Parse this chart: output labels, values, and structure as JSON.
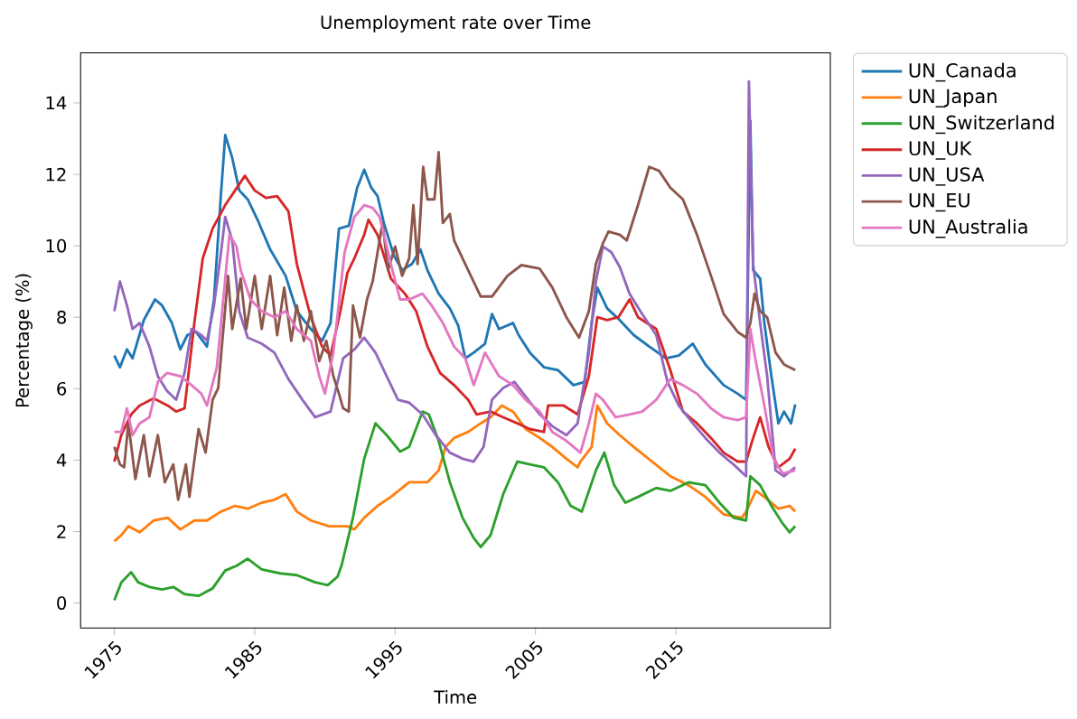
{
  "chart_data": {
    "type": "line",
    "title": "Unemployment rate over Time",
    "xlabel": "Time",
    "ylabel": "Percentage (%)",
    "xlim": [
      1972.6,
      2026.0
    ],
    "xticks": [
      1975,
      1985,
      1995,
      2005,
      2015
    ],
    "ylim": [
      -0.7,
      15.4
    ],
    "yticks": [
      0,
      2,
      4,
      6,
      8,
      10,
      12,
      14
    ],
    "legend": "top right",
    "line_style": "solid",
    "series": [
      {
        "name": "UN_Canada",
        "color": "#1f77b4",
        "x": [
          1975.0,
          1975.4,
          1975.9,
          1976.3,
          1977.1,
          1977.9,
          1978.4,
          1979.1,
          1979.7,
          1980.2,
          1980.8,
          1981.6,
          1982.1,
          1982.6,
          1982.9,
          1983.4,
          1983.9,
          1984.5,
          1985.2,
          1986.1,
          1987.2,
          1988.0,
          1989.0,
          1989.8,
          1990.4,
          1991.0,
          1991.7,
          1992.3,
          1992.8,
          1993.3,
          1993.75,
          1994.2,
          1994.9,
          1995.5,
          1996.2,
          1996.8,
          1997.3,
          1998.1,
          1998.9,
          1999.5,
          2000.0,
          2000.6,
          2001.4,
          2001.9,
          2002.4,
          2003.4,
          2003.8,
          2004.6,
          2005.6,
          2006.6,
          2007.7,
          2008.5,
          2009.0,
          2009.4,
          2010.1,
          2011.0,
          2012.0,
          2013.1,
          2014.3,
          2015.2,
          2016.2,
          2017.1,
          2018.4,
          2019.4,
          2020.0,
          2020.3,
          2020.5,
          2021.0,
          2021.3,
          2021.8,
          2022.3,
          2022.7,
          2023.2,
          2023.5
        ],
        "values": [
          6.93,
          6.6,
          7.1,
          6.85,
          7.92,
          8.5,
          8.33,
          7.84,
          7.1,
          7.5,
          7.6,
          7.18,
          8.5,
          11.47,
          13.1,
          12.46,
          11.55,
          11.3,
          10.73,
          9.9,
          9.16,
          8.17,
          7.67,
          7.34,
          7.84,
          10.48,
          10.56,
          11.63,
          12.13,
          11.63,
          11.39,
          10.64,
          9.74,
          9.32,
          9.49,
          9.9,
          9.32,
          8.66,
          8.25,
          7.76,
          6.85,
          7.01,
          7.26,
          8.09,
          7.67,
          7.84,
          7.5,
          7.01,
          6.6,
          6.52,
          6.1,
          6.19,
          7.84,
          8.83,
          8.25,
          7.92,
          7.5,
          7.18,
          6.85,
          6.93,
          7.26,
          6.68,
          6.1,
          5.86,
          5.69,
          13.5,
          9.32,
          9.08,
          7.84,
          6.35,
          5.03,
          5.36,
          5.03,
          5.56
        ]
      },
      {
        "name": "UN_Japan",
        "color": "#ff7f0e",
        "x": [
          1975.0,
          1975.5,
          1976.0,
          1976.8,
          1977.8,
          1978.8,
          1979.7,
          1980.7,
          1981.6,
          1982.6,
          1983.6,
          1984.5,
          1985.5,
          1986.4,
          1987.2,
          1988.0,
          1989.0,
          1990.3,
          1991.6,
          1992.1,
          1992.8,
          1993.75,
          1994.7,
          1996.0,
          1997.3,
          1998.1,
          1998.6,
          1999.2,
          2000.2,
          2001.1,
          2001.8,
          2002.6,
          2003.4,
          2004.3,
          2005.3,
          2006.2,
          2007.2,
          2008.0,
          2008.2,
          2009.0,
          2009.4,
          2010.1,
          2011.0,
          2012.0,
          2013.3,
          2014.6,
          2015.9,
          2017.1,
          2018.4,
          2019.7,
          2020.0,
          2020.7,
          2021.3,
          2022.3,
          2023.1,
          2023.5
        ],
        "values": [
          1.73,
          1.9,
          2.15,
          1.98,
          2.31,
          2.39,
          2.06,
          2.31,
          2.31,
          2.56,
          2.72,
          2.64,
          2.81,
          2.89,
          3.05,
          2.56,
          2.31,
          2.15,
          2.15,
          2.06,
          2.39,
          2.72,
          2.97,
          3.38,
          3.38,
          3.71,
          4.37,
          4.62,
          4.79,
          5.03,
          5.2,
          5.53,
          5.36,
          4.87,
          4.62,
          4.37,
          4.04,
          3.8,
          3.96,
          4.37,
          5.53,
          5.03,
          4.7,
          4.37,
          3.96,
          3.55,
          3.3,
          2.97,
          2.48,
          2.39,
          2.56,
          3.14,
          2.97,
          2.64,
          2.72,
          2.56
        ]
      },
      {
        "name": "UN_Switzerland",
        "color": "#2ca02c",
        "x": [
          1975.0,
          1975.5,
          1976.2,
          1976.7,
          1977.5,
          1978.4,
          1979.2,
          1980.0,
          1981.0,
          1982.0,
          1982.9,
          1983.7,
          1984.5,
          1985.5,
          1986.8,
          1988.0,
          1989.3,
          1990.2,
          1990.9,
          1991.2,
          1992.0,
          1992.8,
          1993.6,
          1994.4,
          1995.35,
          1996.0,
          1996.95,
          1997.4,
          1998.1,
          1998.9,
          1999.8,
          2000.6,
          2001.1,
          2001.8,
          2002.7,
          2003.7,
          2004.6,
          2005.6,
          2006.6,
          2007.5,
          2008.3,
          2009.3,
          2009.9,
          2010.6,
          2011.4,
          2012.3,
          2013.6,
          2014.6,
          2015.9,
          2017.1,
          2018.1,
          2019.1,
          2020.0,
          2020.3,
          2021.0,
          2021.8,
          2022.6,
          2023.1,
          2023.5
        ],
        "values": [
          0.08,
          0.58,
          0.86,
          0.58,
          0.45,
          0.38,
          0.45,
          0.25,
          0.2,
          0.41,
          0.91,
          1.04,
          1.24,
          0.94,
          0.83,
          0.78,
          0.58,
          0.5,
          0.74,
          1.07,
          2.39,
          4.04,
          5.03,
          4.7,
          4.24,
          4.37,
          5.36,
          5.28,
          4.54,
          3.38,
          2.39,
          1.82,
          1.57,
          1.9,
          3.05,
          3.96,
          3.88,
          3.8,
          3.38,
          2.72,
          2.56,
          3.71,
          4.21,
          3.3,
          2.81,
          2.97,
          3.22,
          3.14,
          3.38,
          3.3,
          2.81,
          2.39,
          2.31,
          3.55,
          3.3,
          2.72,
          2.23,
          1.98,
          2.15
        ]
      },
      {
        "name": "UN_UK",
        "color": "#d62728",
        "x": [
          1975.0,
          1975.5,
          1976.2,
          1976.8,
          1977.8,
          1978.8,
          1979.4,
          1980.0,
          1980.7,
          1981.3,
          1982.0,
          1982.9,
          1983.6,
          1984.3,
          1985.0,
          1985.8,
          1986.6,
          1987.4,
          1988.0,
          1989.0,
          1989.8,
          1990.4,
          1991.1,
          1991.6,
          1992.1,
          1992.8,
          1993.1,
          1993.75,
          1994.7,
          1995.7,
          1996.5,
          1997.3,
          1998.2,
          1999.2,
          2000.2,
          2000.8,
          2001.8,
          2002.7,
          2003.7,
          2004.6,
          2005.6,
          2005.9,
          2007.0,
          2008.0,
          2008.8,
          2009.4,
          2010.1,
          2010.9,
          2011.7,
          2012.3,
          2013.6,
          2014.6,
          2015.5,
          2016.5,
          2017.5,
          2018.4,
          2019.4,
          2020.0,
          2020.5,
          2021.0,
          2021.6,
          2022.3,
          2023.1,
          2023.5
        ],
        "values": [
          3.96,
          4.7,
          5.28,
          5.53,
          5.73,
          5.53,
          5.36,
          5.45,
          7.84,
          9.65,
          10.48,
          11.14,
          11.55,
          11.96,
          11.55,
          11.34,
          11.39,
          10.97,
          9.49,
          8.0,
          7.18,
          6.93,
          8.17,
          9.24,
          9.65,
          10.31,
          10.73,
          10.31,
          9.08,
          8.66,
          8.17,
          7.18,
          6.44,
          6.1,
          5.69,
          5.28,
          5.36,
          5.2,
          5.03,
          4.87,
          4.79,
          5.53,
          5.53,
          5.28,
          6.35,
          8.0,
          7.92,
          8.0,
          8.5,
          8.0,
          7.67,
          6.52,
          5.36,
          5.03,
          4.62,
          4.21,
          3.96,
          3.96,
          4.62,
          5.2,
          4.37,
          3.8,
          4.04,
          4.32
        ]
      },
      {
        "name": "UN_USA",
        "color": "#9467bd",
        "x": [
          1975.0,
          1975.4,
          1975.9,
          1976.3,
          1976.8,
          1977.5,
          1978.1,
          1978.75,
          1979.4,
          1980.0,
          1980.5,
          1981.2,
          1981.6,
          1982.1,
          1982.6,
          1982.9,
          1983.4,
          1983.9,
          1984.5,
          1985.5,
          1986.4,
          1987.4,
          1988.4,
          1989.3,
          1990.4,
          1991.3,
          1992.1,
          1992.8,
          1993.6,
          1994.4,
          1995.2,
          1996.0,
          1996.95,
          1997.9,
          1998.9,
          1999.8,
          2000.6,
          2001.3,
          2001.9,
          2002.7,
          2003.5,
          2004.3,
          2005.3,
          2006.2,
          2007.2,
          2008.0,
          2008.8,
          2009.3,
          2009.8,
          2010.4,
          2011.0,
          2011.7,
          2012.6,
          2013.6,
          2014.4,
          2015.2,
          2016.2,
          2017.1,
          2018.1,
          2019.1,
          2020.0,
          2020.2,
          2020.5,
          2021.0,
          2021.5,
          2022.1,
          2022.7,
          2023.5
        ],
        "values": [
          8.17,
          9.0,
          8.33,
          7.67,
          7.84,
          7.18,
          6.35,
          5.94,
          5.69,
          6.44,
          7.67,
          7.5,
          7.34,
          8.33,
          9.82,
          10.81,
          10.15,
          8.17,
          7.43,
          7.26,
          7.01,
          6.27,
          5.69,
          5.2,
          5.36,
          6.85,
          7.1,
          7.43,
          7.01,
          6.35,
          5.69,
          5.61,
          5.28,
          4.7,
          4.21,
          4.04,
          3.96,
          4.37,
          5.69,
          6.02,
          6.19,
          5.78,
          5.28,
          4.95,
          4.7,
          5.03,
          7.01,
          9.0,
          9.98,
          9.82,
          9.41,
          8.66,
          8.09,
          7.5,
          6.19,
          5.53,
          5.03,
          4.62,
          4.21,
          3.88,
          3.55,
          14.6,
          9.49,
          7.84,
          6.35,
          3.71,
          3.55,
          3.8
        ]
      },
      {
        "name": "UN_EU",
        "color": "#8c564b",
        "x": [
          1975.0,
          1975.4,
          1975.7,
          1976.0,
          1976.5,
          1977.1,
          1977.5,
          1978.1,
          1978.6,
          1979.2,
          1979.55,
          1980.1,
          1980.35,
          1981.0,
          1981.5,
          1982.0,
          1982.4,
          1983.1,
          1983.4,
          1984.0,
          1984.4,
          1985.0,
          1985.5,
          1986.1,
          1986.6,
          1987.1,
          1987.6,
          1988.0,
          1988.5,
          1989.0,
          1989.6,
          1990.1,
          1990.6,
          1991.0,
          1991.3,
          1991.7,
          1992.0,
          1992.5,
          1993.0,
          1993.4,
          1994.1,
          1994.5,
          1995.0,
          1995.5,
          1996.0,
          1996.3,
          1996.6,
          1997.0,
          1997.3,
          1997.8,
          1998.1,
          1998.4,
          1998.9,
          1999.2,
          2000.2,
          2001.1,
          2001.9,
          2003.0,
          2004.0,
          2005.3,
          2006.2,
          2007.2,
          2008.1,
          2008.8,
          2009.3,
          2009.8,
          2010.2,
          2011.0,
          2011.5,
          2012.3,
          2013.1,
          2013.8,
          2014.6,
          2015.5,
          2016.5,
          2017.5,
          2018.4,
          2019.4,
          2020.0,
          2020.3,
          2020.6,
          2021.0,
          2021.5,
          2022.1,
          2022.7,
          2023.5
        ],
        "values": [
          4.37,
          3.88,
          3.8,
          5.03,
          3.47,
          4.7,
          3.55,
          4.7,
          3.38,
          3.88,
          2.89,
          3.88,
          2.97,
          4.87,
          4.21,
          5.69,
          6.02,
          9.16,
          7.67,
          9.08,
          7.67,
          9.16,
          7.67,
          9.16,
          7.5,
          8.83,
          7.34,
          8.33,
          7.34,
          8.17,
          6.77,
          7.34,
          6.35,
          5.86,
          5.45,
          5.36,
          8.33,
          7.43,
          8.5,
          9.0,
          10.64,
          9.32,
          9.98,
          9.16,
          9.65,
          11.14,
          9.49,
          12.21,
          11.3,
          11.3,
          12.62,
          10.64,
          10.89,
          10.15,
          9.32,
          8.58,
          8.58,
          9.16,
          9.46,
          9.36,
          8.83,
          8.0,
          7.43,
          8.17,
          9.49,
          10.07,
          10.4,
          10.31,
          10.15,
          11.14,
          12.21,
          12.1,
          11.63,
          11.3,
          10.31,
          9.16,
          8.09,
          7.59,
          7.43,
          7.84,
          8.66,
          8.17,
          8.0,
          7.01,
          6.68,
          6.52
        ]
      },
      {
        "name": "UN_Australia",
        "color": "#e377c2",
        "x": [
          1975.0,
          1975.5,
          1975.9,
          1976.3,
          1976.8,
          1977.5,
          1978.1,
          1978.75,
          1979.7,
          1980.5,
          1981.2,
          1981.6,
          1982.3,
          1982.8,
          1983.2,
          1983.7,
          1984.0,
          1984.7,
          1985.5,
          1986.4,
          1987.2,
          1988.0,
          1989.0,
          1989.6,
          1990.0,
          1990.6,
          1991.4,
          1992.1,
          1992.8,
          1993.4,
          1993.9,
          1994.7,
          1995.35,
          1996.0,
          1996.95,
          1997.6,
          1998.4,
          1999.2,
          2000.0,
          2000.6,
          2001.4,
          2002.4,
          2003.4,
          2004.3,
          2005.3,
          2006.2,
          2007.2,
          2008.2,
          2008.8,
          2009.3,
          2009.8,
          2010.7,
          2011.7,
          2012.6,
          2013.6,
          2014.6,
          2015.5,
          2016.5,
          2017.5,
          2018.4,
          2019.4,
          2020.0,
          2020.3,
          2020.65,
          2021.3,
          2021.95,
          2022.6,
          2023.5
        ],
        "values": [
          4.79,
          4.79,
          5.45,
          4.7,
          5.03,
          5.2,
          6.19,
          6.44,
          6.35,
          6.1,
          5.86,
          5.53,
          6.6,
          8.66,
          10.31,
          9.98,
          9.32,
          8.5,
          8.17,
          8.0,
          8.17,
          7.67,
          7.34,
          6.35,
          5.86,
          7.01,
          9.82,
          10.81,
          11.14,
          11.06,
          10.81,
          9.49,
          8.5,
          8.5,
          8.66,
          8.33,
          7.84,
          7.18,
          6.85,
          6.1,
          7.01,
          6.35,
          6.1,
          5.69,
          5.36,
          4.79,
          4.54,
          4.21,
          5.03,
          5.86,
          5.69,
          5.2,
          5.28,
          5.36,
          5.69,
          6.27,
          6.1,
          5.86,
          5.45,
          5.2,
          5.12,
          5.2,
          7.67,
          6.85,
          5.53,
          4.04,
          3.63,
          3.71
        ]
      }
    ]
  }
}
